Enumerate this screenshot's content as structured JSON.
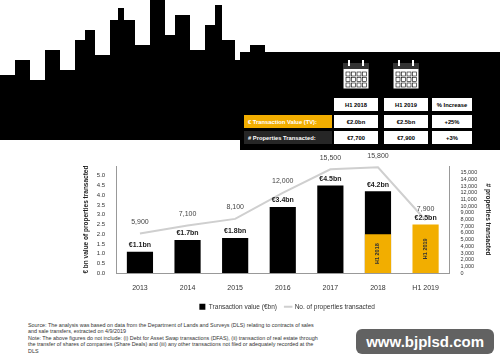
{
  "header_table": {
    "columns": [
      "H1 2018",
      "H1 2019",
      "% Increase"
    ],
    "rows": [
      {
        "label": "€ Transaction Value (TV):",
        "cells": [
          "€2.0bn",
          "€2.5bn",
          "+25%"
        ]
      },
      {
        "label": "# Properties Transacted:",
        "cells": [
          "€7,700",
          "€7,900",
          "+3%"
        ]
      }
    ]
  },
  "chart_data": {
    "type": "bar",
    "categories": [
      "2013",
      "2014",
      "2015",
      "2016",
      "2017",
      "2018",
      "H1 2019"
    ],
    "series": [
      {
        "name": "Transaction value (€bn)",
        "type": "bar",
        "color": "#000000",
        "values": [
          1.1,
          1.7,
          1.8,
          3.4,
          4.5,
          4.2,
          null
        ],
        "value_labels": [
          "€1.1bn",
          "€1.7bn",
          "€1.8bn",
          "€3.4bn",
          "€4.5bn",
          "€4.2bn",
          null
        ]
      },
      {
        "type": "bar",
        "color": "#f2ae00",
        "values": [
          null,
          null,
          null,
          null,
          null,
          2.0,
          2.5
        ],
        "value_labels": [
          null,
          null,
          null,
          null,
          null,
          null,
          "€2.5bn"
        ],
        "bar_text": [
          null,
          null,
          null,
          null,
          null,
          "H1 2018",
          "H1 2019"
        ]
      },
      {
        "name": "No. of properties transacted",
        "type": "line",
        "axis": "y2",
        "color": "#cfcfcf",
        "values": [
          5900,
          7100,
          8100,
          12000,
          15500,
          15800,
          7900
        ],
        "value_labels": [
          "5,900",
          "7,100",
          "8,100",
          "12,000",
          "15,500",
          "15,800",
          "7,900"
        ]
      }
    ],
    "ylabel": "€ bn value of properties transacted",
    "y2label": "# properties transacted",
    "ylim": [
      0,
      5.5
    ],
    "yticks": [
      {
        "value": 0,
        "label": "0.0"
      },
      0.5,
      {
        "value": 1,
        "label": "1.0"
      },
      1.5,
      {
        "value": 2,
        "label": "2.0"
      },
      2.5,
      {
        "value": 3,
        "label": "3.0"
      },
      3.5,
      {
        "value": 4,
        "label": "4.0"
      },
      4.5,
      {
        "value": 5,
        "label": "5.0"
      }
    ],
    "y2lim": [
      0,
      16000
    ],
    "y2ticks": [
      0,
      {
        "value": 1000,
        "label": "1,000"
      },
      {
        "value": 2000,
        "label": "2,000"
      },
      {
        "value": 3000,
        "label": "3,000"
      },
      {
        "value": 4000,
        "label": "4,000"
      },
      {
        "value": 5000,
        "label": "5,000"
      },
      {
        "value": 6000,
        "label": "6,000"
      },
      {
        "value": 7000,
        "label": "7,000"
      },
      {
        "value": 8000,
        "label": "8,000"
      },
      {
        "value": 9000,
        "label": "9,000"
      },
      {
        "value": 10000,
        "label": "10,000"
      },
      {
        "value": 11000,
        "label": "11,000"
      },
      {
        "value": 12000,
        "label": "12,000"
      },
      {
        "value": 13000,
        "label": "13,000"
      },
      {
        "value": 14000,
        "label": "14,000"
      },
      {
        "value": 15000,
        "label": "15,000"
      }
    ],
    "grid": false,
    "data_labels": true,
    "legend": "bottom"
  },
  "notes": [
    "Source: The analysis was based on data from the Department of Lands and Surveys (DLS) relating to contracts of sales and sale transfers, extracted on 4/9/2019",
    "Note: The above figures do not include: (i) Debt for Asset Swap transactions (DFAS), (ii) transaction of real estate through the transfer of shares of companies (Share Deals) and (iii) any other transactions not filed or adequately recorded at the DLS"
  ],
  "watermark": "www.bjplsd.com"
}
